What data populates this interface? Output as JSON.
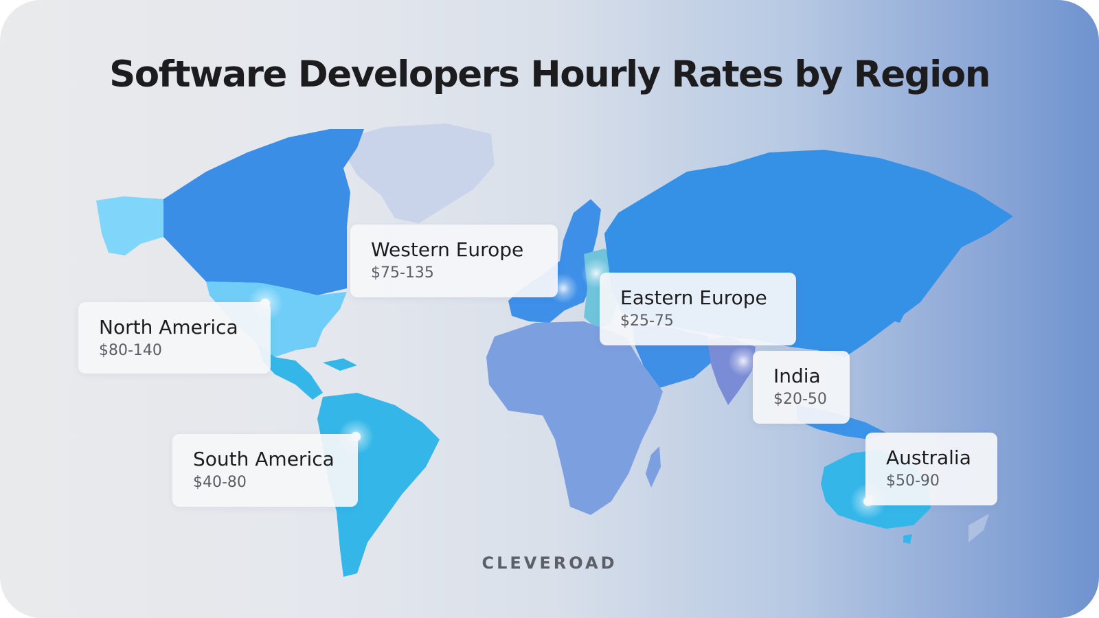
{
  "title": "Software Developers Hourly Rates by Region",
  "brand": "CLEVEROAD",
  "regions": [
    {
      "name": "North America",
      "rate": "$80-140"
    },
    {
      "name": "Western Europe",
      "rate": "$75-135"
    },
    {
      "name": "Eastern Europe",
      "rate": "$25-75"
    },
    {
      "name": "India",
      "rate": "$20-50"
    },
    {
      "name": "South America",
      "rate": "$40-80"
    },
    {
      "name": "Australia",
      "rate": "$50-90"
    }
  ],
  "colors": {
    "north_america": "#3a8ee6",
    "usa_mexico": "#6fcdf7",
    "alaska": "#7fd6fa",
    "greenland": "#c9d3ea",
    "latin_america": "#34b7e8",
    "western_europe": "#3d8fe8",
    "eastern_europe": "#6fc4dc",
    "russia_asia": "#3591e6",
    "africa": "#7c9fe0",
    "middle_east": "#3f8fe6",
    "india": "#7b8cd6",
    "southeast_asia": "#3b94e8",
    "australia": "#34b7e8",
    "title": "#1c1c1e"
  }
}
